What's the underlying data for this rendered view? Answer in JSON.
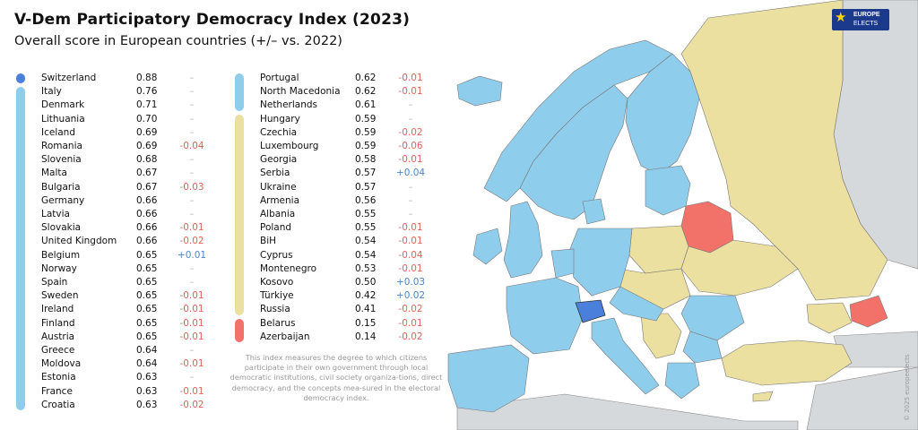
{
  "title": "V-Dem Participatory Democracy Index (2023)",
  "subtitle": "Overall score in European countries (+/– vs. 2022)",
  "note": "This index measures the degree to which citizens participate in their own government through local democratic institutions, civil society organiza-tions, direct democracy, and the concepts mea-sured in the electoral democracy index.",
  "logo": {
    "line1": "EUROPE",
    "line2": "ELECTS"
  },
  "copyright": "© 2025 europeelects",
  "colors": {
    "top": "#4a7fdc",
    "high": "#8fcdec",
    "mid": "#ebe0a0",
    "low": "#f2726a",
    "neutral_land": "#d5d9dc",
    "sea": "#ffffff"
  },
  "legend_groups": [
    {
      "color_key": "top",
      "from": "Switzerland",
      "to": "Switzerland"
    },
    {
      "color_key": "high",
      "from": "Italy",
      "to": "Netherlands"
    },
    {
      "color_key": "mid",
      "from": "Hungary",
      "to": "Russia"
    },
    {
      "color_key": "low",
      "from": "Belarus",
      "to": "Azerbaijan"
    }
  ],
  "rows": [
    {
      "country": "Switzerland",
      "score": "0.88",
      "change": "–"
    },
    {
      "country": "Italy",
      "score": "0.76",
      "change": "–"
    },
    {
      "country": "Denmark",
      "score": "0.71",
      "change": "–"
    },
    {
      "country": "Lithuania",
      "score": "0.70",
      "change": "–"
    },
    {
      "country": "Iceland",
      "score": "0.69",
      "change": "–"
    },
    {
      "country": "Romania",
      "score": "0.69",
      "change": "-0.04"
    },
    {
      "country": "Slovenia",
      "score": "0.68",
      "change": "–"
    },
    {
      "country": "Malta",
      "score": "0.67",
      "change": "–"
    },
    {
      "country": "Bulgaria",
      "score": "0.67",
      "change": "-0.03"
    },
    {
      "country": "Germany",
      "score": "0.66",
      "change": "–"
    },
    {
      "country": "Latvia",
      "score": "0.66",
      "change": "–"
    },
    {
      "country": "Slovakia",
      "score": "0.66",
      "change": "-0.01"
    },
    {
      "country": "United Kingdom",
      "score": "0.66",
      "change": "-0.02"
    },
    {
      "country": "Belgium",
      "score": "0.65",
      "change": "+0.01"
    },
    {
      "country": "Norway",
      "score": "0.65",
      "change": "–"
    },
    {
      "country": "Spain",
      "score": "0.65",
      "change": "–"
    },
    {
      "country": "Sweden",
      "score": "0.65",
      "change": "-0.01"
    },
    {
      "country": "Ireland",
      "score": "0.65",
      "change": "-0.01"
    },
    {
      "country": "Finland",
      "score": "0.65",
      "change": "-0.01"
    },
    {
      "country": "Austria",
      "score": "0.65",
      "change": "-0.01"
    },
    {
      "country": "Greece",
      "score": "0.64",
      "change": "–"
    },
    {
      "country": "Moldova",
      "score": "0.64",
      "change": "-0.01"
    },
    {
      "country": "Estonia",
      "score": "0.63",
      "change": "–"
    },
    {
      "country": "France",
      "score": "0.63",
      "change": "-0.01"
    },
    {
      "country": "Croatia",
      "score": "0.63",
      "change": "-0.02"
    },
    {
      "country": "Portugal",
      "score": "0.62",
      "change": "-0.01"
    },
    {
      "country": "North Macedonia",
      "score": "0.62",
      "change": "-0.01"
    },
    {
      "country": "Netherlands",
      "score": "0.61",
      "change": "–"
    },
    {
      "country": "Hungary",
      "score": "0.59",
      "change": "–"
    },
    {
      "country": "Czechia",
      "score": "0.59",
      "change": "-0.02"
    },
    {
      "country": "Luxembourg",
      "score": "0.59",
      "change": "-0.06"
    },
    {
      "country": "Georgia",
      "score": "0.58",
      "change": "-0.01"
    },
    {
      "country": "Serbia",
      "score": "0.57",
      "change": "+0.04"
    },
    {
      "country": "Ukraine",
      "score": "0.57",
      "change": "–"
    },
    {
      "country": "Armenia",
      "score": "0.56",
      "change": "–"
    },
    {
      "country": "Albania",
      "score": "0.55",
      "change": "–"
    },
    {
      "country": "Poland",
      "score": "0.55",
      "change": "-0.01"
    },
    {
      "country": "BiH",
      "score": "0.54",
      "change": "-0.01"
    },
    {
      "country": "Cyprus",
      "score": "0.54",
      "change": "-0.04"
    },
    {
      "country": "Montenegro",
      "score": "0.53",
      "change": "-0.01"
    },
    {
      "country": "Kosovo",
      "score": "0.50",
      "change": "+0.03"
    },
    {
      "country": "Türkiye",
      "score": "0.42",
      "change": "+0.02"
    },
    {
      "country": "Russia",
      "score": "0.41",
      "change": "-0.02"
    },
    {
      "country": "Belarus",
      "score": "0.15",
      "change": "-0.01"
    },
    {
      "country": "Azerbaijan",
      "score": "0.14",
      "change": "-0.02"
    }
  ]
}
